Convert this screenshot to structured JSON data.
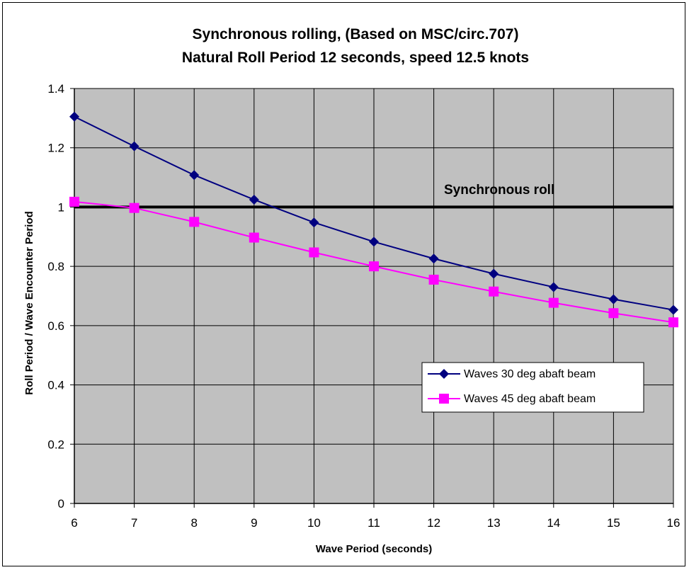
{
  "chart_data": {
    "type": "line",
    "title": "Synchronous rolling, (Based on MSC/circ.707)",
    "subtitle": "Natural Roll Period 12 seconds, speed 12.5 knots",
    "xlabel": "Wave Period (seconds)",
    "ylabel": "Roll Period / Wave Encounter Period",
    "xlim": [
      6,
      16
    ],
    "ylim": [
      0,
      1.4
    ],
    "x_ticks": [
      "6",
      "7",
      "8",
      "9",
      "10",
      "11",
      "12",
      "13",
      "14",
      "15",
      "16"
    ],
    "y_ticks": [
      "0",
      "0.2",
      "0.4",
      "0.6",
      "0.8",
      "1",
      "1.2",
      "1.4"
    ],
    "grid": true,
    "legend_position": "lower-right",
    "x": [
      6,
      7,
      8,
      9,
      10,
      11,
      12,
      13,
      14,
      15,
      16
    ],
    "series": [
      {
        "name": "Waves 30 deg abaft beam",
        "color": "#000080",
        "marker": "diamond",
        "values": [
          1.305,
          1.205,
          1.108,
          1.025,
          0.948,
          0.883,
          0.826,
          0.775,
          0.73,
          0.689,
          0.653
        ]
      },
      {
        "name": "Waves 45 deg abaft beam",
        "color": "#ff00ff",
        "marker": "square",
        "values": [
          1.018,
          0.997,
          0.95,
          0.897,
          0.847,
          0.8,
          0.755,
          0.715,
          0.677,
          0.642,
          0.611
        ]
      }
    ],
    "reference_line": {
      "y": 1,
      "label": "Synchronous roll",
      "color": "#000000"
    }
  }
}
